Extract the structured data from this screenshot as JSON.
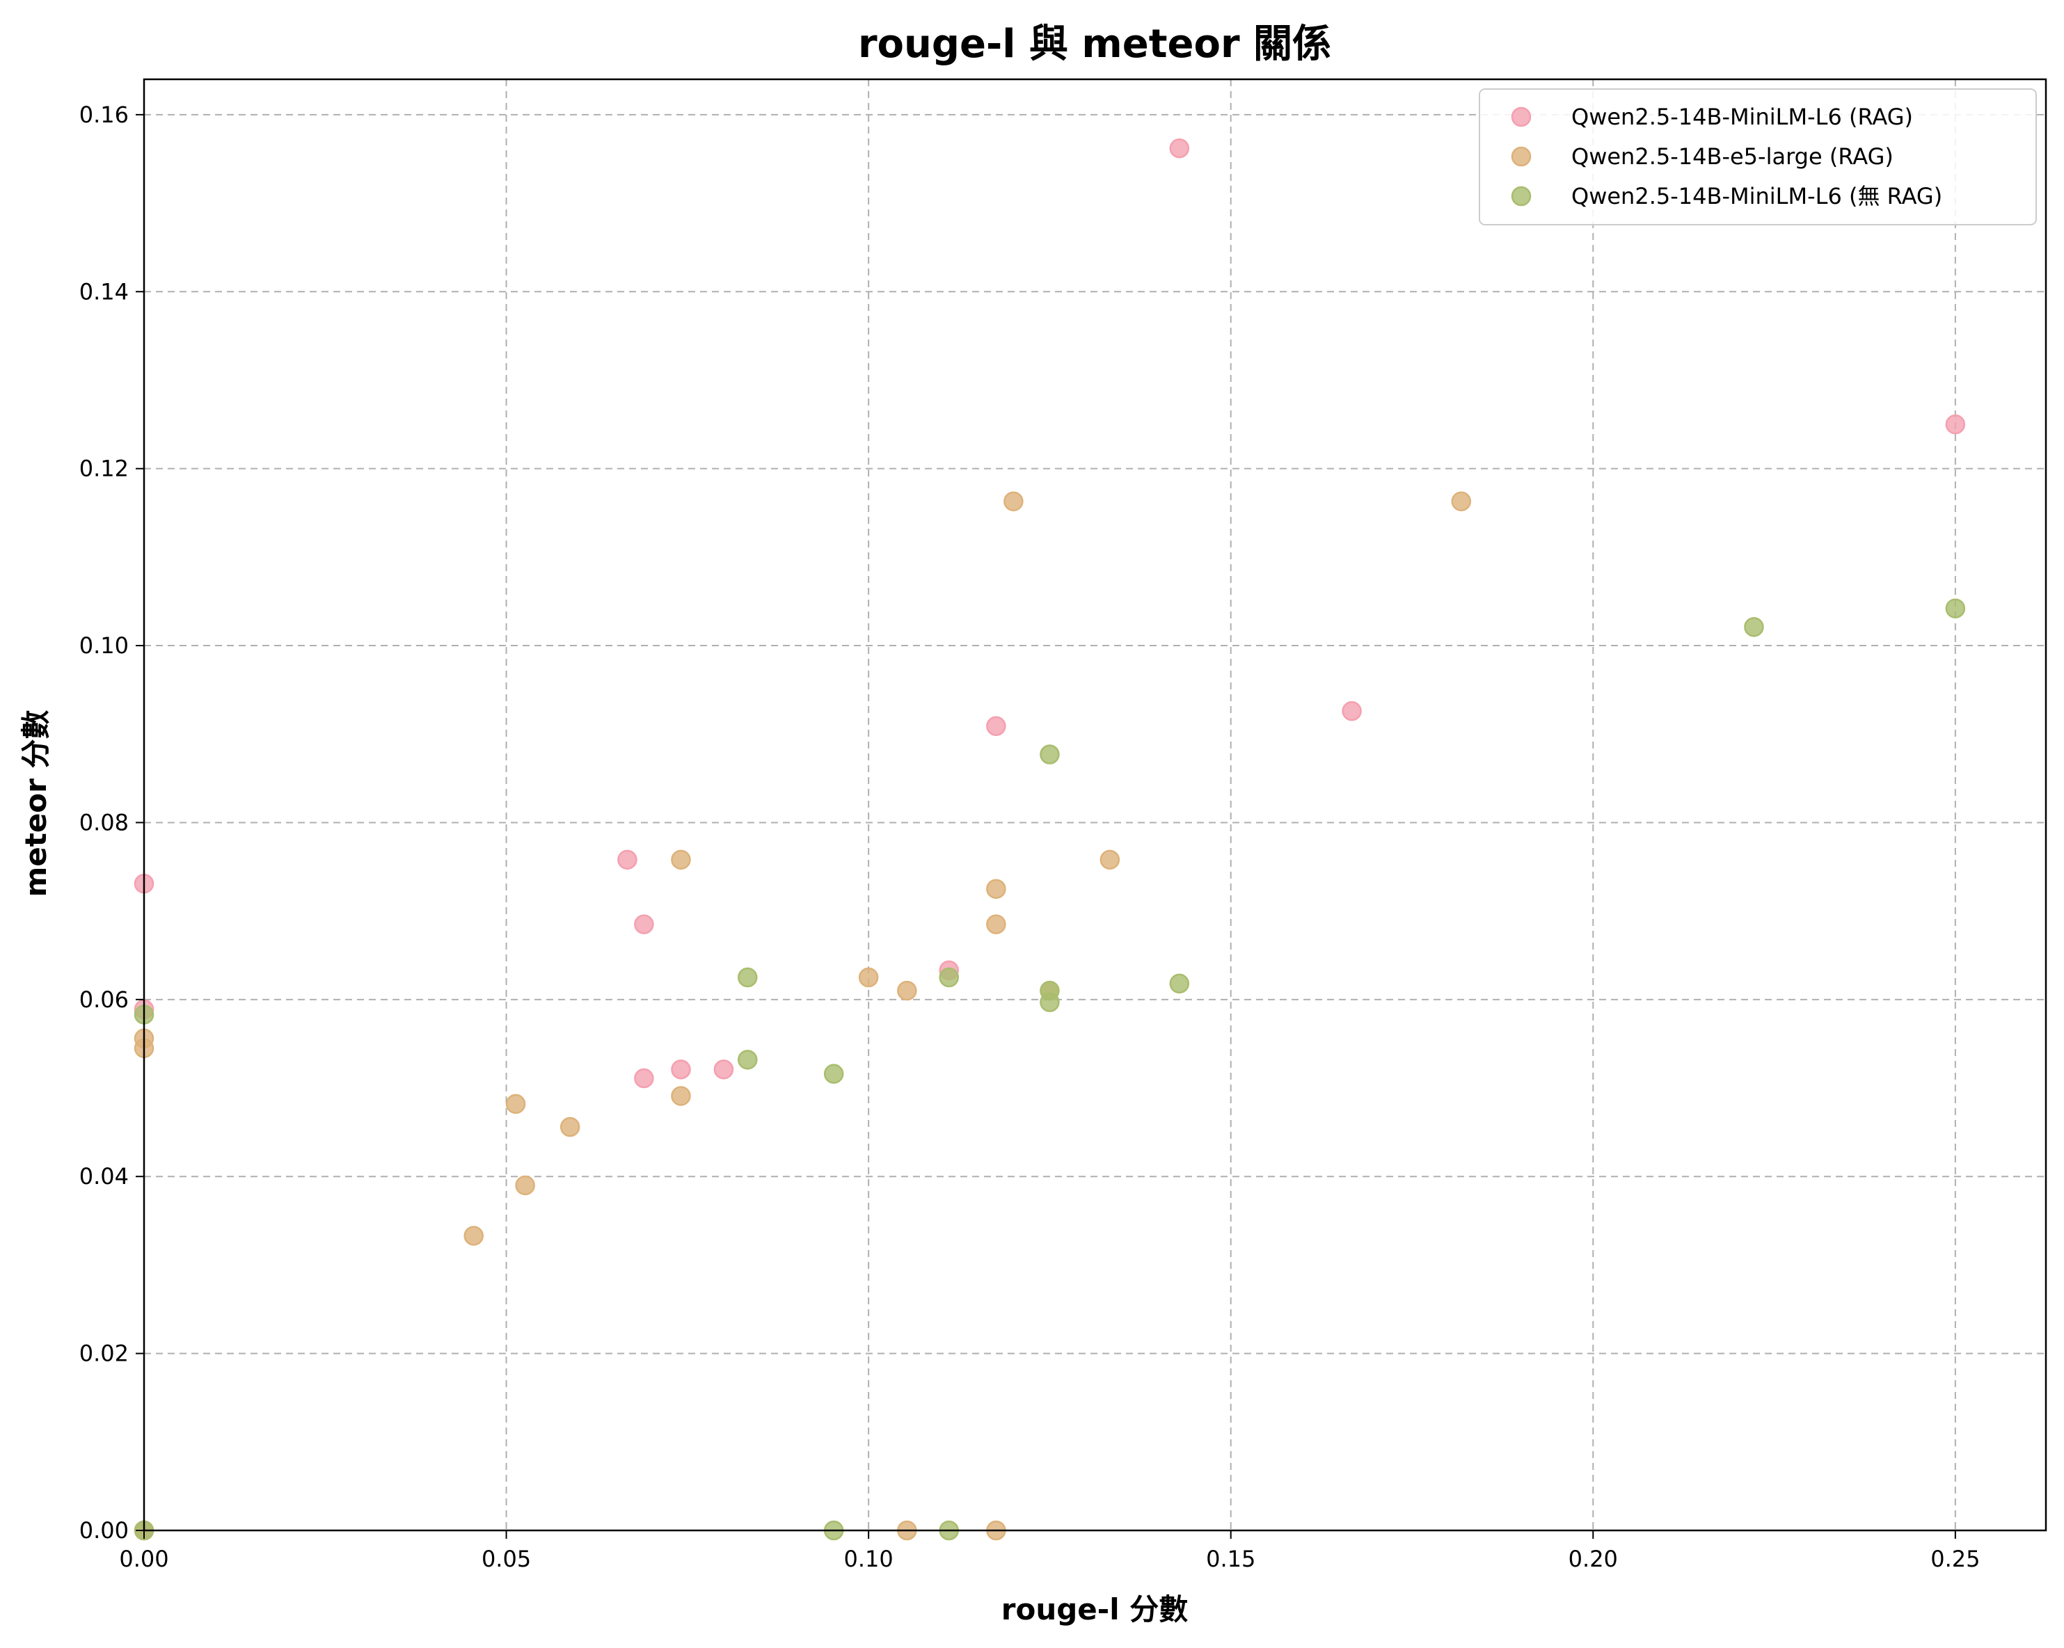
{
  "chart_data": {
    "type": "scatter",
    "title": "rouge-l 與 meteor 關係",
    "xlabel": "rouge-l 分數",
    "ylabel": "meteor 分數",
    "xlim": [
      0,
      0.2625
    ],
    "ylim": [
      0,
      0.164
    ],
    "x_ticks": [
      "0.00",
      "0.05",
      "0.10",
      "0.15",
      "0.20",
      "0.25"
    ],
    "y_ticks": [
      "0.00",
      "0.02",
      "0.04",
      "0.06",
      "0.08",
      "0.10",
      "0.12",
      "0.14",
      "0.16"
    ],
    "grid": true,
    "legend_position": "top-right",
    "series": [
      {
        "name": "Qwen2.5-14B-MiniLM-L6 (RAG)",
        "color": "#f4a0b0",
        "points": [
          [
            0.0,
            0.0731
          ],
          [
            0.0,
            0.0589
          ],
          [
            0.0,
            0.0
          ],
          [
            0.0667,
            0.0758
          ],
          [
            0.069,
            0.0685
          ],
          [
            0.069,
            0.0511
          ],
          [
            0.0741,
            0.0521
          ],
          [
            0.08,
            0.0521
          ],
          [
            0.1111,
            0.0633
          ],
          [
            0.1176,
            0.0909
          ],
          [
            0.1429,
            0.1562
          ],
          [
            0.1667,
            0.0926
          ],
          [
            0.25,
            0.125
          ]
        ]
      },
      {
        "name": "Qwen2.5-14B-e5-large (RAG)",
        "color": "#ddb27a",
        "points": [
          [
            0.0,
            0.0556
          ],
          [
            0.0,
            0.0545
          ],
          [
            0.0,
            0.0
          ],
          [
            0.0455,
            0.0333
          ],
          [
            0.0513,
            0.0482
          ],
          [
            0.0526,
            0.039
          ],
          [
            0.0588,
            0.0456
          ],
          [
            0.0741,
            0.0758
          ],
          [
            0.0741,
            0.0491
          ],
          [
            0.1,
            0.0625
          ],
          [
            0.1053,
            0.061
          ],
          [
            0.1053,
            0.0
          ],
          [
            0.1176,
            0.0725
          ],
          [
            0.1176,
            0.0685
          ],
          [
            0.1176,
            0.0
          ],
          [
            0.12,
            0.1163
          ],
          [
            0.125,
            0.061
          ],
          [
            0.1333,
            0.0758
          ],
          [
            0.1818,
            0.1163
          ]
        ]
      },
      {
        "name": "Qwen2.5-14B-MiniLM-L6 (無 RAG)",
        "color": "#a9bd6e",
        "points": [
          [
            0.0,
            0.0583
          ],
          [
            0.0,
            0.0
          ],
          [
            0.0833,
            0.0625
          ],
          [
            0.0833,
            0.0532
          ],
          [
            0.0952,
            0.0516
          ],
          [
            0.0952,
            0.0
          ],
          [
            0.1111,
            0.0625
          ],
          [
            0.1111,
            0.0
          ],
          [
            0.125,
            0.0877
          ],
          [
            0.125,
            0.061
          ],
          [
            0.125,
            0.0597
          ],
          [
            0.1429,
            0.0618
          ],
          [
            0.2222,
            0.1021
          ],
          [
            0.25,
            0.1042
          ]
        ]
      }
    ]
  }
}
